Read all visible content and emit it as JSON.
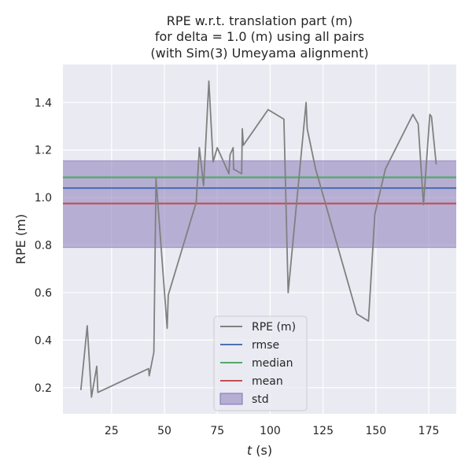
{
  "chart_data": {
    "type": "line",
    "title_lines": [
      "RPE w.r.t. translation part (m)",
      "for delta = 1.0 (m) using all pairs",
      "(with Sim(3) Umeyama alignment)"
    ],
    "xlabel_italic": "t",
    "xlabel_rest": " (s)",
    "ylabel": "RPE (m)",
    "xlim": [
      2,
      188
    ],
    "ylim": [
      0.09,
      1.56
    ],
    "xticks": [
      25,
      50,
      75,
      100,
      125,
      150,
      175
    ],
    "xtick_labels": [
      "25",
      "50",
      "75",
      "100",
      "125",
      "150",
      "175"
    ],
    "yticks": [
      0.2,
      0.4,
      0.6,
      0.8,
      1.0,
      1.2,
      1.4
    ],
    "ytick_labels": [
      "0.2",
      "0.4",
      "0.6",
      "0.8",
      "1.0",
      "1.2",
      "1.4"
    ],
    "grid": true,
    "background_color": "#eaeaf2",
    "legend_position": "lower-center",
    "series": [
      {
        "name": "RPE (m)",
        "color": "#808080",
        "x": [
          10.5,
          13.5,
          15.5,
          18.0,
          18.5,
          42.5,
          42.8,
          45.0,
          46.0,
          51.3,
          51.8,
          65.0,
          66.5,
          68.5,
          71.0,
          73.0,
          75.0,
          80.5,
          81.0,
          82.5,
          82.7,
          86.5,
          86.8,
          87.3,
          99.0,
          106.5,
          108.5,
          117.0,
          117.5,
          121.5,
          141.0,
          146.5,
          149.5,
          154.5,
          167.5,
          170.0,
          172.5,
          175.5,
          176.3,
          177.5,
          178.5
        ],
        "y": [
          0.19,
          0.46,
          0.16,
          0.29,
          0.18,
          0.28,
          0.25,
          0.35,
          1.08,
          0.45,
          0.59,
          0.98,
          1.21,
          1.05,
          1.49,
          1.15,
          1.21,
          1.1,
          1.18,
          1.21,
          1.12,
          1.1,
          1.29,
          1.22,
          1.37,
          1.33,
          0.6,
          1.4,
          1.29,
          1.12,
          0.51,
          0.48,
          0.93,
          1.12,
          1.35,
          1.31,
          0.97,
          1.35,
          1.34,
          1.23,
          1.14
        ]
      }
    ],
    "stats": [
      {
        "name": "rmse",
        "value": 1.04,
        "color": "#4c72b0"
      },
      {
        "name": "median",
        "value": 1.085,
        "color": "#55a868"
      },
      {
        "name": "mean",
        "value": 0.975,
        "color": "#c44e52"
      }
    ],
    "std_band": {
      "name": "std",
      "low": 0.79,
      "high": 1.155,
      "color": "#8172b3"
    }
  }
}
